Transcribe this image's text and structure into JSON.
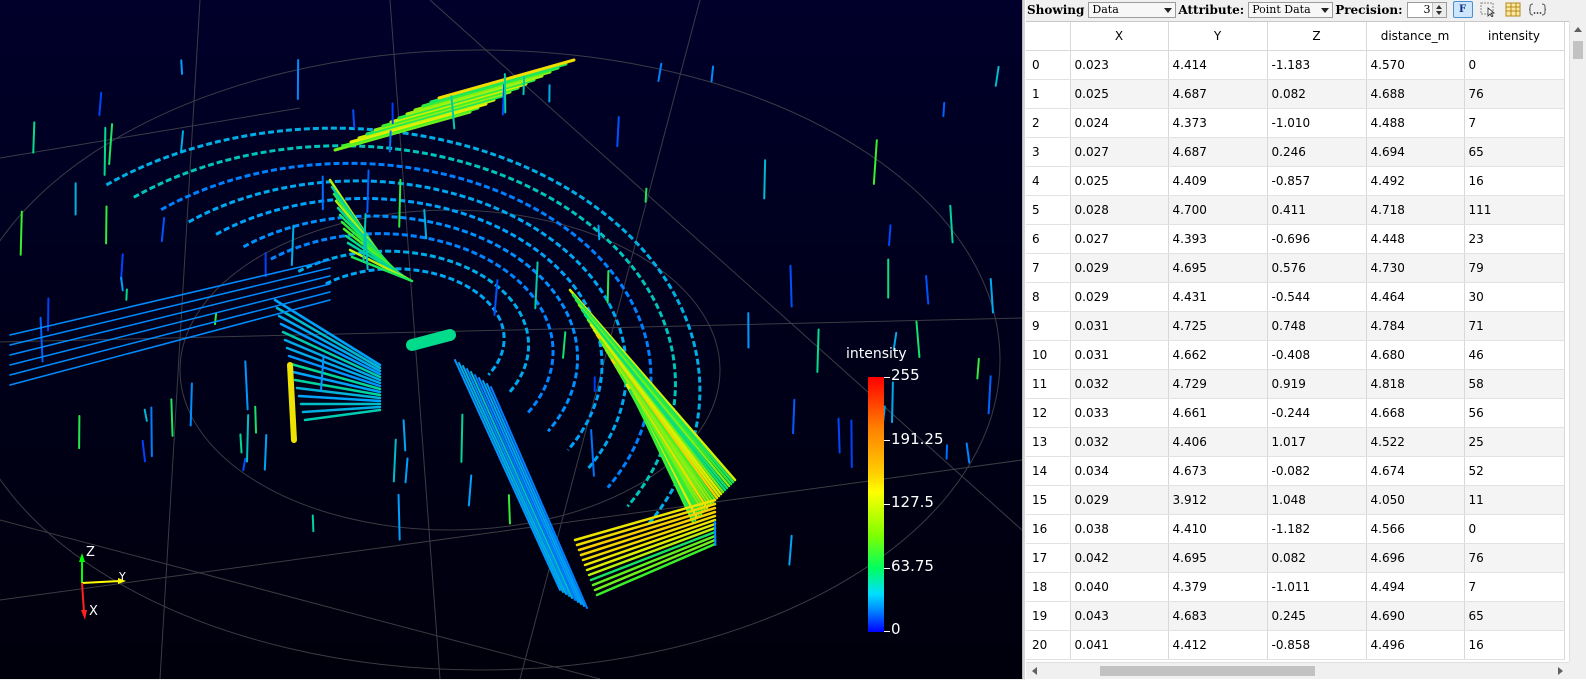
{
  "toolbar": {
    "showing_label": "Showing",
    "showing_value": "Data",
    "attribute_label": "Attribute:",
    "attribute_value": "Point Data",
    "precision_label": "Precision:",
    "precision_value": "3",
    "fixed_button": "F",
    "icons": [
      "fixed-representation-icon",
      "toggle-selection-icon",
      "toggle-column-visibility-icon",
      "export-spreadsheet-icon"
    ]
  },
  "table": {
    "columns": [
      "",
      "X",
      "Y",
      "Z",
      "distance_m",
      "intensity"
    ],
    "rows": [
      [
        "0",
        "0.023",
        "4.414",
        "-1.183",
        "4.570",
        "0"
      ],
      [
        "1",
        "0.025",
        "4.687",
        "0.082",
        "4.688",
        "76"
      ],
      [
        "2",
        "0.024",
        "4.373",
        "-1.010",
        "4.488",
        "7"
      ],
      [
        "3",
        "0.027",
        "4.687",
        "0.246",
        "4.694",
        "65"
      ],
      [
        "4",
        "0.025",
        "4.409",
        "-0.857",
        "4.492",
        "16"
      ],
      [
        "5",
        "0.028",
        "4.700",
        "0.411",
        "4.718",
        "111"
      ],
      [
        "6",
        "0.027",
        "4.393",
        "-0.696",
        "4.448",
        "23"
      ],
      [
        "7",
        "0.029",
        "4.695",
        "0.576",
        "4.730",
        "79"
      ],
      [
        "8",
        "0.029",
        "4.431",
        "-0.544",
        "4.464",
        "30"
      ],
      [
        "9",
        "0.031",
        "4.725",
        "0.748",
        "4.784",
        "71"
      ],
      [
        "10",
        "0.031",
        "4.662",
        "-0.408",
        "4.680",
        "46"
      ],
      [
        "11",
        "0.032",
        "4.729",
        "0.919",
        "4.818",
        "58"
      ],
      [
        "12",
        "0.033",
        "4.661",
        "-0.244",
        "4.668",
        "56"
      ],
      [
        "13",
        "0.032",
        "4.406",
        "1.017",
        "4.522",
        "25"
      ],
      [
        "14",
        "0.034",
        "4.673",
        "-0.082",
        "4.674",
        "52"
      ],
      [
        "15",
        "0.029",
        "3.912",
        "1.048",
        "4.050",
        "11"
      ],
      [
        "16",
        "0.038",
        "4.410",
        "-1.182",
        "4.566",
        "0"
      ],
      [
        "17",
        "0.042",
        "4.695",
        "0.082",
        "4.696",
        "76"
      ],
      [
        "18",
        "0.040",
        "4.379",
        "-1.011",
        "4.494",
        "7"
      ],
      [
        "19",
        "0.043",
        "4.683",
        "0.245",
        "4.690",
        "65"
      ],
      [
        "20",
        "0.041",
        "4.412",
        "-0.858",
        "4.496",
        "16"
      ]
    ]
  },
  "legend": {
    "title": "intensity",
    "labels": [
      "255",
      "191.25",
      "127.5",
      "63.75",
      "0"
    ],
    "colors": [
      "#ff0000",
      "#ff8000",
      "#ffff00",
      "#00ff60",
      "#0000ff"
    ]
  },
  "axes": {
    "z": "Z",
    "y": "Y",
    "x": "X"
  },
  "colors": {
    "background_top": "#00002a",
    "grid": "#5a5a5a",
    "toolbar_bg": "#f0f0f0",
    "fixed_button_bg": "#cde6fb"
  }
}
